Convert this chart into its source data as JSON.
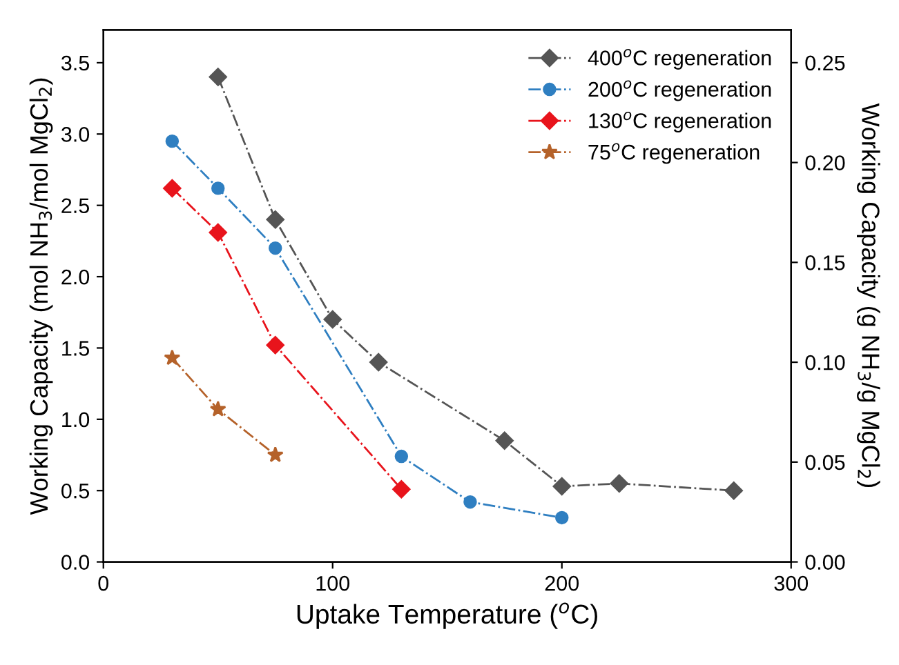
{
  "chart_data": {
    "type": "line",
    "xlabel": "Uptake Temperature ($^{o}$C)",
    "ylabel": "Working Capacity (mol NH$_{3}$/mol MgCl$_{2}$)",
    "y2label": "Working Capacity (g NH$_{3}$/g MgCl$_{2}$)",
    "xlim": [
      0,
      300
    ],
    "xticks": [
      0,
      100,
      200,
      300
    ],
    "ylim": [
      0,
      3.73
    ],
    "yticks": [
      {
        "value": 0,
        "label": "0.0"
      },
      0.5,
      {
        "value": 1,
        "label": "1.0"
      },
      1.5,
      {
        "value": 2,
        "label": "2.0"
      },
      2.5,
      {
        "value": 3,
        "label": "3.0"
      },
      3.5
    ],
    "y2lim": [
      0,
      0.2664
    ],
    "y2ticks": [
      {
        "value": 0,
        "label": "0.00"
      },
      0.05,
      {
        "value": 0.1,
        "label": "0.10"
      },
      0.15,
      {
        "value": 0.2,
        "label": "0.20"
      },
      0.25
    ],
    "legend": "top right",
    "grid": false,
    "line_style": "dashdot",
    "series": [
      {
        "name": "400$^{o}$C regeneration",
        "color": "#555555",
        "marker": "diamond",
        "x": [
          50,
          75,
          100,
          120,
          175,
          200,
          225,
          275
        ],
        "values": [
          3.4,
          2.4,
          1.7,
          1.4,
          0.85,
          0.53,
          0.55,
          0.5
        ]
      },
      {
        "name": "200$^{o}$C regeneration",
        "color": "#2f7fc1",
        "marker": "circle",
        "x": [
          30,
          50,
          75,
          130,
          160,
          200
        ],
        "values": [
          2.95,
          2.62,
          2.2,
          0.74,
          0.42,
          0.31
        ]
      },
      {
        "name": "130$^{o}$C regeneration",
        "color": "#e8141c",
        "marker": "diamond",
        "x": [
          30,
          50,
          75,
          130
        ],
        "values": [
          2.62,
          2.31,
          1.52,
          0.51
        ]
      },
      {
        "name": "75$^{o}$C regeneration",
        "color": "#b5622a",
        "marker": "star",
        "x": [
          30,
          50,
          75
        ],
        "values": [
          1.43,
          1.07,
          0.75
        ]
      }
    ]
  }
}
